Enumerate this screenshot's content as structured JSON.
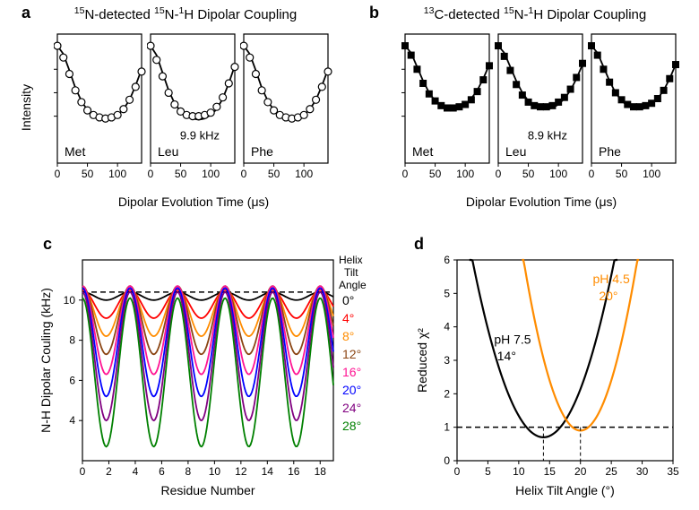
{
  "panel_a": {
    "label": "a",
    "title": "15N-detected 15N-1H Dipolar Coupling",
    "y_label": "Intensity",
    "x_label": "Dipolar Evolution Time (μs)",
    "xlim": [
      0,
      140
    ],
    "ylim": [
      0,
      1.1
    ],
    "xticks": [
      0,
      50,
      100
    ],
    "yticks": [
      0.4,
      0.6,
      0.8,
      1.0
    ],
    "marker": "circle",
    "marker_size": 4,
    "line_color": "#000000",
    "annot": "9.9 kHz",
    "subplots": [
      {
        "name": "Met",
        "data_y": [
          1.0,
          0.9,
          0.76,
          0.62,
          0.52,
          0.45,
          0.41,
          0.39,
          0.38,
          0.39,
          0.41,
          0.46,
          0.54,
          0.65,
          0.78
        ],
        "curve_y": [
          1.0,
          0.93,
          0.79,
          0.64,
          0.53,
          0.45,
          0.41,
          0.39,
          0.38,
          0.39,
          0.41,
          0.46,
          0.54,
          0.66,
          0.8
        ]
      },
      {
        "name": "Leu",
        "data_y": [
          1.0,
          0.88,
          0.74,
          0.6,
          0.5,
          0.44,
          0.41,
          0.4,
          0.4,
          0.41,
          0.43,
          0.48,
          0.56,
          0.68,
          0.82
        ],
        "curve_y": [
          1.0,
          0.92,
          0.77,
          0.62,
          0.51,
          0.44,
          0.4,
          0.38,
          0.37,
          0.38,
          0.41,
          0.46,
          0.55,
          0.68,
          0.83
        ]
      },
      {
        "name": "Phe",
        "data_y": [
          1.0,
          0.9,
          0.76,
          0.62,
          0.52,
          0.45,
          0.41,
          0.39,
          0.38,
          0.39,
          0.41,
          0.46,
          0.54,
          0.65,
          0.78
        ],
        "curve_y": [
          1.0,
          0.93,
          0.79,
          0.64,
          0.53,
          0.45,
          0.41,
          0.39,
          0.38,
          0.39,
          0.41,
          0.46,
          0.54,
          0.66,
          0.8
        ]
      }
    ],
    "data_x": [
      0,
      10,
      20,
      30,
      40,
      50,
      60,
      70,
      80,
      90,
      100,
      110,
      120,
      130,
      140
    ]
  },
  "panel_b": {
    "label": "b",
    "title": "13C-detected 15N-1H Dipolar Coupling",
    "x_label": "Dipolar Evolution Time (μs)",
    "xlim": [
      0,
      140
    ],
    "ylim": [
      0,
      1.1
    ],
    "xticks": [
      0,
      50,
      100
    ],
    "yticks": [
      0.4,
      0.6,
      0.8,
      1.0
    ],
    "marker": "square",
    "marker_size": 4,
    "line_color": "#000000",
    "annot": "8.9 kHz",
    "subplots": [
      {
        "name": "Met",
        "data_y": [
          1.0,
          0.92,
          0.8,
          0.68,
          0.59,
          0.53,
          0.49,
          0.47,
          0.47,
          0.48,
          0.5,
          0.54,
          0.61,
          0.71,
          0.83
        ],
        "curve_y": [
          1.0,
          0.94,
          0.82,
          0.7,
          0.6,
          0.53,
          0.49,
          0.47,
          0.46,
          0.47,
          0.5,
          0.55,
          0.62,
          0.72,
          0.84
        ]
      },
      {
        "name": "Leu",
        "data_y": [
          1.0,
          0.91,
          0.79,
          0.67,
          0.58,
          0.52,
          0.49,
          0.48,
          0.48,
          0.49,
          0.52,
          0.56,
          0.63,
          0.73,
          0.85
        ],
        "curve_y": [
          1.0,
          0.94,
          0.82,
          0.7,
          0.6,
          0.53,
          0.49,
          0.47,
          0.46,
          0.47,
          0.5,
          0.55,
          0.62,
          0.72,
          0.84
        ]
      },
      {
        "name": "Phe",
        "data_y": [
          1.0,
          0.92,
          0.8,
          0.69,
          0.6,
          0.54,
          0.5,
          0.48,
          0.48,
          0.49,
          0.51,
          0.55,
          0.62,
          0.72,
          0.84
        ],
        "curve_y": [
          1.0,
          0.94,
          0.82,
          0.7,
          0.6,
          0.53,
          0.49,
          0.47,
          0.46,
          0.47,
          0.5,
          0.55,
          0.62,
          0.72,
          0.84
        ]
      }
    ],
    "data_x": [
      0,
      10,
      20,
      30,
      40,
      50,
      60,
      70,
      80,
      90,
      100,
      110,
      120,
      130,
      140
    ]
  },
  "panel_c": {
    "label": "c",
    "y_label": "N-H Dipolar Couling (kHz)",
    "x_label": "Residue Number",
    "xlim": [
      0,
      19
    ],
    "ylim": [
      2,
      12
    ],
    "xticks": [
      0,
      2,
      4,
      6,
      8,
      10,
      12,
      14,
      16,
      18
    ],
    "yticks": [
      4,
      6,
      8,
      10
    ],
    "legend_title": "Helix Tilt Angle",
    "dashed_y": 10.4,
    "period": 3.6,
    "series": [
      {
        "label": "0°",
        "color": "#000000",
        "amp": 0.2,
        "mean": 10.2
      },
      {
        "label": "4°",
        "color": "#ff0000",
        "amp": 0.7,
        "mean": 9.8
      },
      {
        "label": "8°",
        "color": "#ff8c00",
        "amp": 1.2,
        "mean": 9.4
      },
      {
        "label": "12°",
        "color": "#8b4513",
        "amp": 1.7,
        "mean": 9.0
      },
      {
        "label": "16°",
        "color": "#ff1493",
        "amp": 2.2,
        "mean": 8.5
      },
      {
        "label": "20°",
        "color": "#0000ff",
        "amp": 2.7,
        "mean": 7.9
      },
      {
        "label": "24°",
        "color": "#800080",
        "amp": 3.2,
        "mean": 7.2
      },
      {
        "label": "28°",
        "color": "#008000",
        "amp": 3.7,
        "mean": 6.4
      }
    ]
  },
  "panel_d": {
    "label": "d",
    "y_label": "Reduced χ²",
    "x_label": "Helix Tilt Angle (°)",
    "xlim": [
      0,
      35
    ],
    "ylim": [
      0,
      6
    ],
    "xticks": [
      0,
      5,
      10,
      15,
      20,
      25,
      30,
      35
    ],
    "yticks": [
      0,
      1,
      2,
      3,
      4,
      5,
      6
    ],
    "dashed_y": 1.0,
    "series": [
      {
        "label": "pH 7.5",
        "min_label": "14°",
        "color": "#000000",
        "min_x": 14,
        "min_y": 0.7,
        "scale": 0.04
      },
      {
        "label": "pH 4.5",
        "min_label": "20°",
        "color": "#ff8c00",
        "min_x": 20,
        "min_y": 0.9,
        "scale": 0.06
      }
    ]
  },
  "colors": {
    "axis": "#000000",
    "background": "#ffffff"
  }
}
